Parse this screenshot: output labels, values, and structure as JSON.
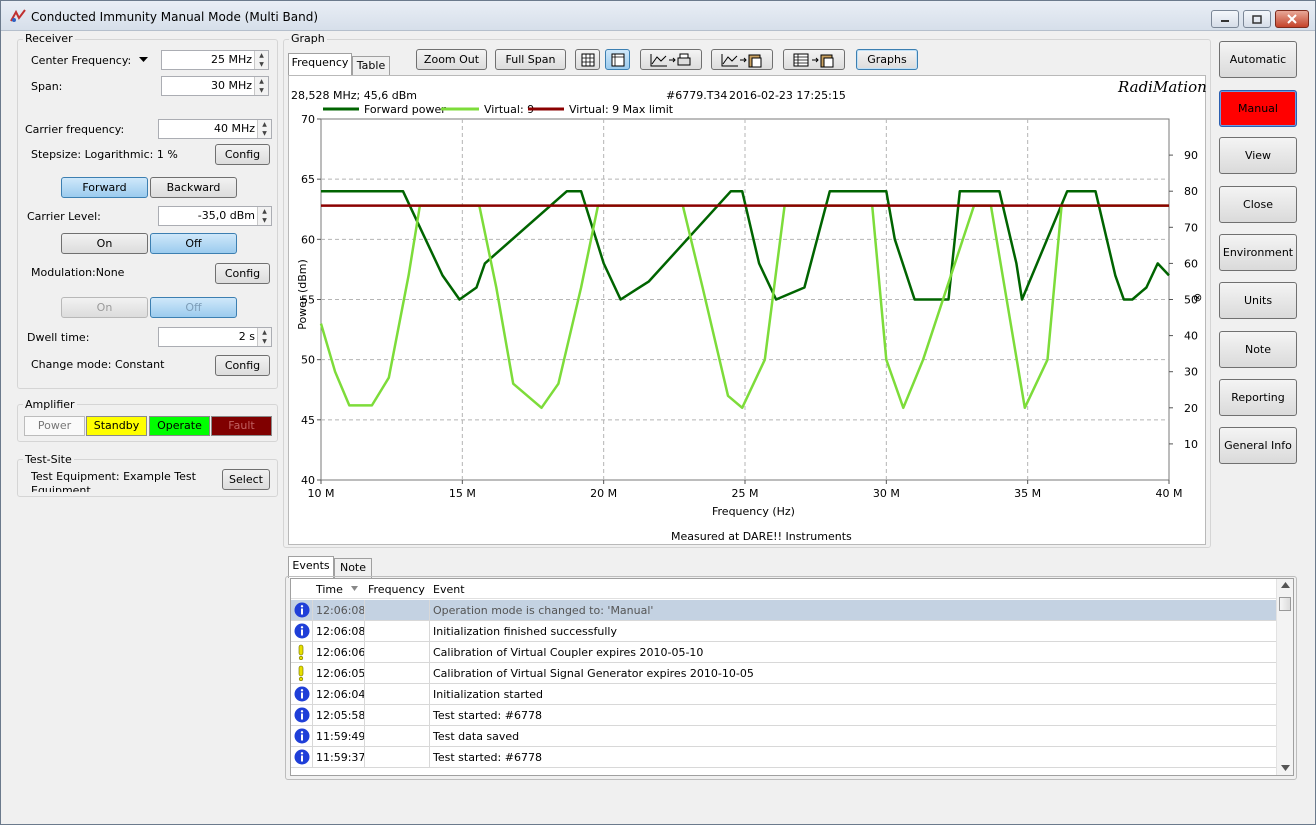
{
  "window": {
    "title": "Conducted Immunity Manual Mode (Multi Band)"
  },
  "receiver": {
    "group_label": "Receiver",
    "center_freq_label": "Center Frequency:",
    "center_freq_value": "25 MHz",
    "span_label": "Span:",
    "span_value": "30 MHz",
    "carrier_freq_label": "Carrier frequency:",
    "carrier_freq_value": "40 MHz",
    "stepsize_label": "Stepsize: Logarithmic: 1 %",
    "config_label": "Config",
    "forward_label": "Forward",
    "backward_label": "Backward",
    "carrier_level_label": "Carrier Level:",
    "carrier_level_value": "-35,0 dBm",
    "on_label": "On",
    "off_label": "Off",
    "modulation_label": "Modulation:None",
    "dwell_label": "Dwell time:",
    "dwell_value": "2 s",
    "change_mode_label": "Change mode: Constant"
  },
  "amplifier": {
    "group_label": "Amplifier",
    "power": "Power",
    "standby": "Standby",
    "operate": "Operate",
    "fault": "Fault",
    "colors": {
      "standby": "#ffff00",
      "operate": "#00ff00",
      "fault": "#800000"
    }
  },
  "testsite": {
    "group_label": "Test-Site",
    "equipment_label": "Test Equipment: Example Test Equipment",
    "select_label": "Select"
  },
  "graph": {
    "group_label": "Graph",
    "tabs": [
      "Frequency",
      "Table"
    ],
    "zoom_out": "Zoom Out",
    "full_span": "Full Span",
    "graphs": "Graphs",
    "brand": "RadiMation",
    "cursor_readout": "28,528 MHz; 45,6 dBm",
    "test_id": "#6779.T34",
    "timestamp": "2016-02-23 17:25:15",
    "footer": "Measured at DARE!! Instruments"
  },
  "chart_data": {
    "type": "line",
    "xlabel": "Frequency (Hz)",
    "ylabel": "Power (dBm)",
    "xlim": [
      10,
      40
    ],
    "ylim": [
      40,
      70
    ],
    "y2lim": [
      0,
      100
    ],
    "x_ticks": [
      "10 M",
      "15 M",
      "20 M",
      "25 M",
      "30 M",
      "35 M",
      "40 M"
    ],
    "y_ticks": [
      "40",
      "45",
      "50",
      "55",
      "60",
      "65",
      "70"
    ],
    "y2_ticks": [
      "10",
      "20",
      "30",
      "40",
      "50",
      "60",
      "70",
      "80",
      "90"
    ],
    "grid": true,
    "legend_position": "top-left",
    "series": [
      {
        "name": "Forward power",
        "color": "#006400",
        "x": [
          10,
          12.9,
          13.5,
          14.3,
          14.9,
          15.5,
          15.8,
          18.7,
          19.2,
          20.0,
          20.6,
          21.6,
          24.5,
          24.9,
          25.5,
          26.1,
          27.1,
          28.0,
          30.0,
          30.3,
          31.0,
          32.2,
          32.6,
          34.0,
          34.6,
          34.8,
          36.4,
          37.4,
          38.1,
          38.4,
          38.7,
          39.2,
          39.6,
          40
        ],
        "y": [
          64,
          64,
          61,
          57,
          55,
          56,
          58,
          64,
          64,
          58,
          55,
          56.5,
          64,
          64,
          58,
          55,
          56,
          64,
          64,
          60,
          55,
          55,
          64,
          64,
          58,
          55,
          64,
          64,
          57,
          55,
          55,
          56,
          58,
          57
        ]
      },
      {
        "name": "Virtual: 9",
        "color": "#7ddc3a",
        "x": [
          10,
          10.5,
          11,
          11.8,
          12.4,
          13.1,
          13.5,
          13.8,
          14.4,
          15.6,
          16.2,
          16.8,
          17.8,
          18.4,
          19.2,
          19.8,
          20.5,
          21.5,
          22.8,
          23.5,
          24.4,
          24.9,
          25.7,
          26.4,
          27.5,
          28.3,
          29.5,
          30.0,
          30.6,
          31.3,
          33.1,
          33.7,
          34.4,
          34.9,
          35.7,
          36.2,
          36.8,
          38.7,
          39.3,
          40
        ],
        "y": [
          53,
          49,
          46.2,
          46.2,
          48.5,
          57,
          62.8,
          62.8,
          62.8,
          62.8,
          56,
          48,
          46,
          48,
          56,
          62.8,
          62.8,
          62.8,
          62.8,
          56,
          47,
          46,
          50,
          62.8,
          62.8,
          62.8,
          62.8,
          50,
          46,
          50,
          62.8,
          62.8,
          53,
          46,
          50,
          62.8,
          62.8,
          62.8,
          62.8,
          62.8
        ]
      },
      {
        "name": "Virtual: 9 Max limit",
        "color": "#8b0000",
        "x": [
          10,
          40
        ],
        "y": [
          62.8,
          62.8
        ]
      }
    ]
  },
  "events": {
    "tabs": [
      "Events",
      "Note"
    ],
    "columns": [
      "Time",
      "Frequency",
      "Event"
    ],
    "rows": [
      {
        "icon": "info",
        "time": "12:06:08",
        "frequency": "",
        "event": "Operation mode is changed to: 'Manual'"
      },
      {
        "icon": "info",
        "time": "12:06:08",
        "frequency": "",
        "event": "Initialization finished successfully"
      },
      {
        "icon": "warning",
        "time": "12:06:06",
        "frequency": "",
        "event": "Calibration of Virtual Coupler expires 2010-05-10"
      },
      {
        "icon": "warning",
        "time": "12:06:05",
        "frequency": "",
        "event": "Calibration of Virtual Signal Generator expires 2010-10-05"
      },
      {
        "icon": "info",
        "time": "12:06:04",
        "frequency": "",
        "event": "Initialization started"
      },
      {
        "icon": "info",
        "time": "12:05:58",
        "frequency": "",
        "event": "Test started: #6778"
      },
      {
        "icon": "info",
        "time": "11:59:49",
        "frequency": "",
        "event": "Test data saved"
      },
      {
        "icon": "info",
        "time": "11:59:37",
        "frequency": "",
        "event": "Test started: #6778"
      }
    ]
  },
  "right_buttons": [
    "Automatic",
    "Manual",
    "View",
    "Close",
    "Environment",
    "Units",
    "Note",
    "Reporting",
    "General Info"
  ]
}
